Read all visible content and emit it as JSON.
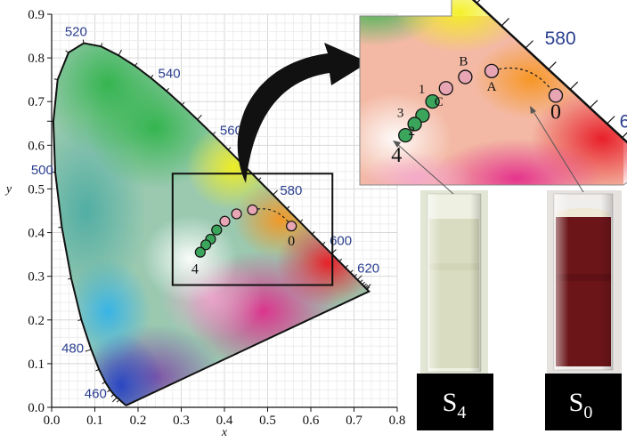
{
  "colors": {
    "pink_point": "#e8a5b4",
    "green_point": "#3ca55c",
    "sample_S4_liquid": "#d9dcc0",
    "sample_S0_liquid": "#6b1519",
    "wavelength_label": "#2a3f8f"
  },
  "chart_data": {
    "type": "scatter",
    "title": "",
    "xlabel": "x",
    "ylabel": "y",
    "xlim": [
      0.0,
      0.8
    ],
    "ylim": [
      0.0,
      0.9
    ],
    "xticks": [
      "0.0",
      "0.1",
      "0.2",
      "0.3",
      "0.4",
      "0.5",
      "0.6",
      "0.7",
      "0.8"
    ],
    "yticks": [
      "0.0",
      "0.1",
      "0.2",
      "0.3",
      "0.4",
      "0.5",
      "0.6",
      "0.7",
      "0.8",
      "0.9"
    ],
    "grid": true,
    "background": "CIE 1931 chromaticity diagram",
    "wavelength_labels": [
      {
        "text": "460",
        "x": 0.144,
        "y": 0.03
      },
      {
        "text": "480",
        "x": 0.091,
        "y": 0.133
      },
      {
        "text": "500",
        "x": 0.008,
        "y": 0.538
      },
      {
        "text": "520",
        "x": 0.074,
        "y": 0.834
      },
      {
        "text": "540",
        "x": 0.23,
        "y": 0.754
      },
      {
        "text": "560",
        "x": 0.373,
        "y": 0.624
      },
      {
        "text": "580",
        "x": 0.512,
        "y": 0.487
      },
      {
        "text": "600",
        "x": 0.627,
        "y": 0.372
      },
      {
        "text": "620",
        "x": 0.691,
        "y": 0.308
      }
    ],
    "series": [
      {
        "points": [
          {
            "label": "0",
            "x": 0.555,
            "y": 0.415
          },
          {
            "label": "A",
            "x": 0.465,
            "y": 0.452
          },
          {
            "label": "B",
            "x": 0.428,
            "y": 0.443
          },
          {
            "label": "C",
            "x": 0.401,
            "y": 0.426
          }
        ]
      },
      {
        "points": [
          {
            "label": "1",
            "x": 0.382,
            "y": 0.406
          },
          {
            "label": "2",
            "x": 0.368,
            "y": 0.385
          },
          {
            "label": "3",
            "x": 0.357,
            "y": 0.372
          },
          {
            "label": "4",
            "x": 0.344,
            "y": 0.355
          }
        ]
      }
    ],
    "inset": {
      "visible_wavelength_labels": [
        "580",
        "600"
      ],
      "point_labels": [
        "0",
        "A",
        "B",
        "C",
        "1",
        "2",
        "3",
        "4"
      ]
    },
    "main_plot_labels": [
      "0",
      "4"
    ],
    "samples": [
      {
        "label_base": "S",
        "label_sub": "4",
        "liquid_color": "#d9dcc0"
      },
      {
        "label_base": "S",
        "label_sub": "0",
        "liquid_color": "#6b1519"
      }
    ]
  }
}
